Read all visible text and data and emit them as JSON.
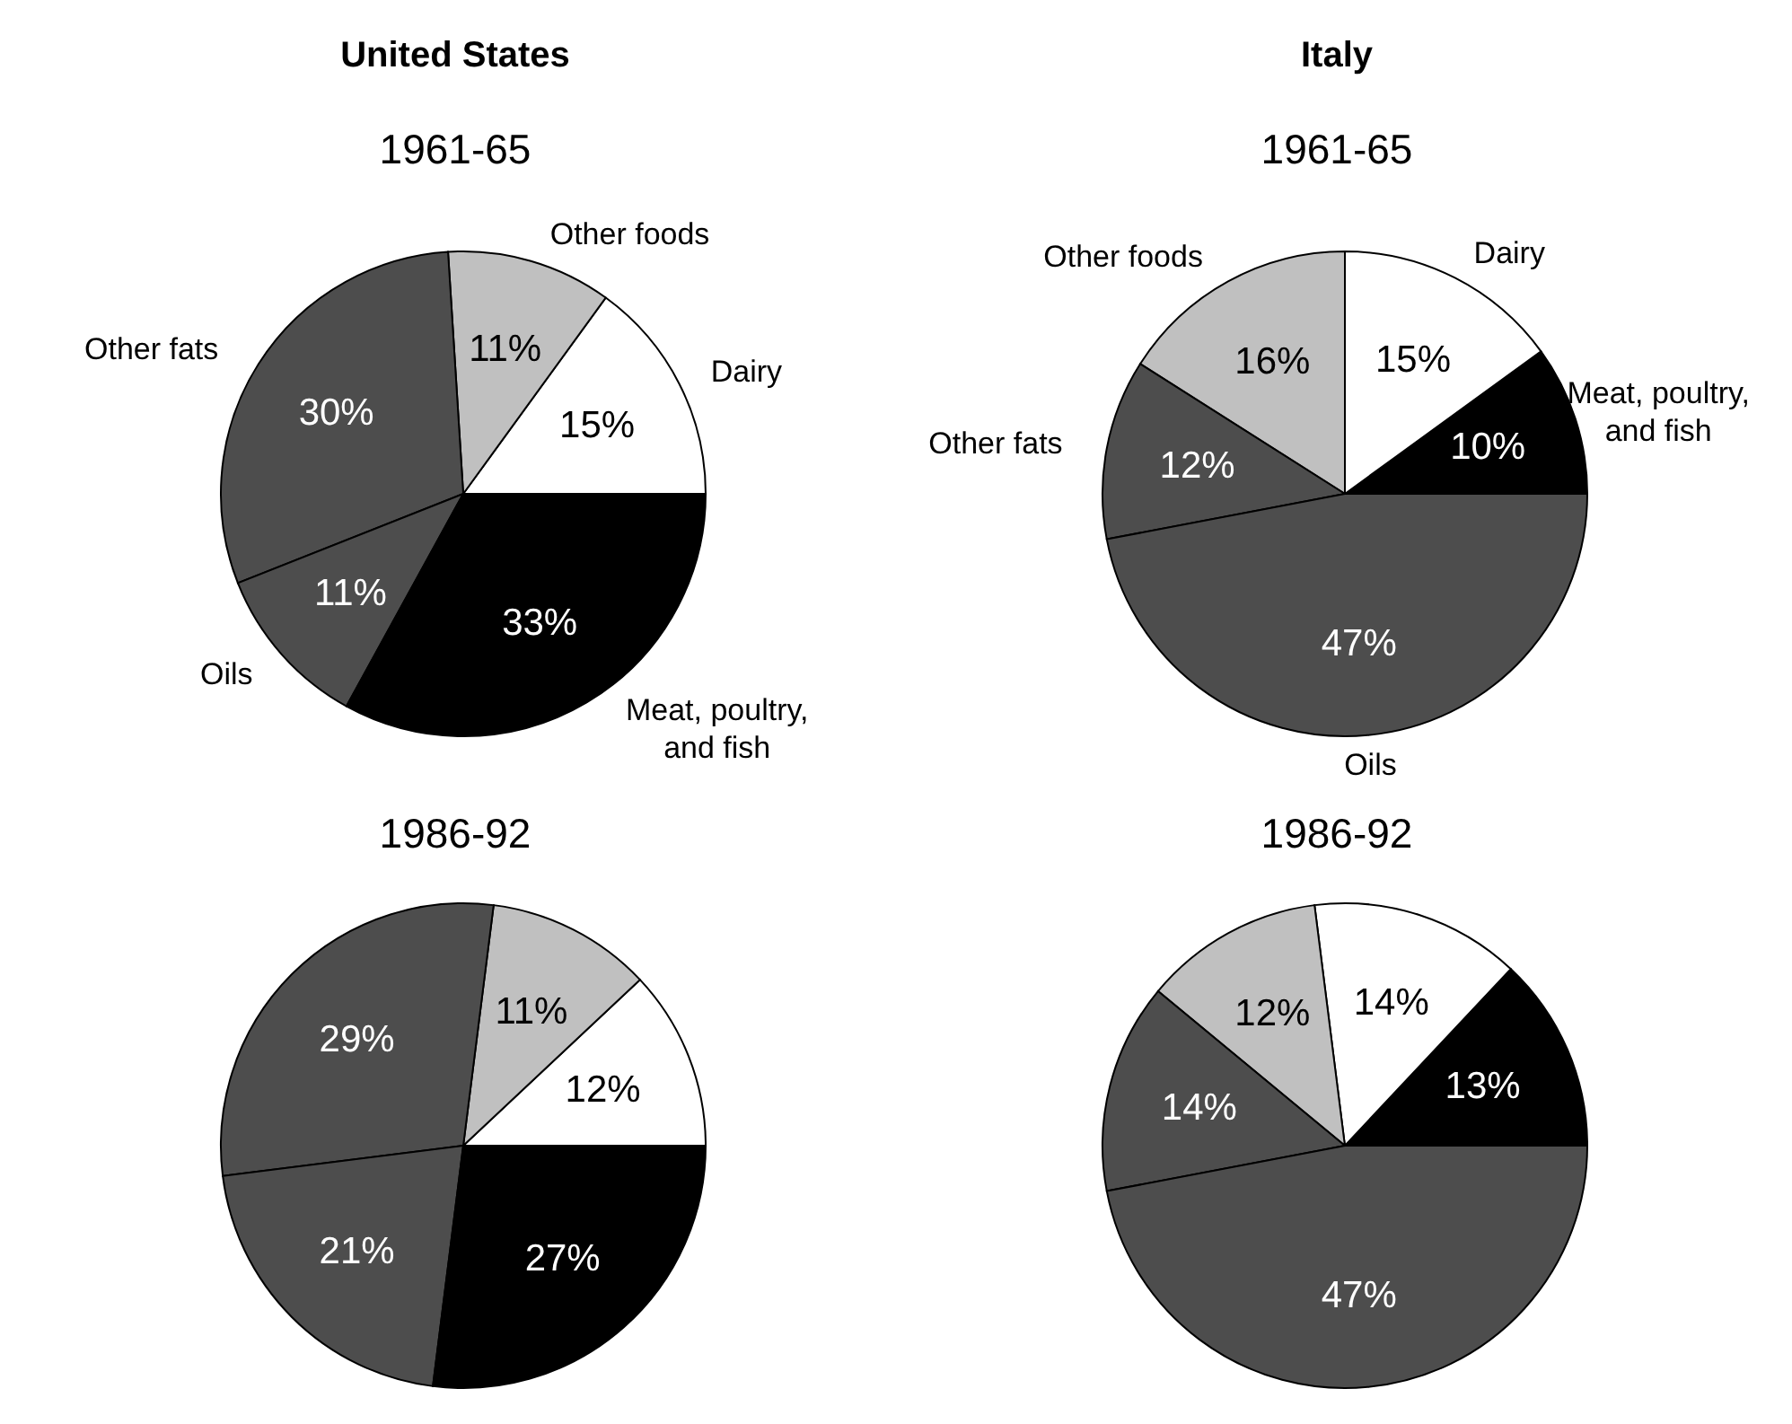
{
  "chart_data": [
    {
      "type": "pie",
      "title": "United States",
      "subtitle": "1961-65",
      "categories": [
        "Dairy",
        "Other foods",
        "Other fats",
        "Oils",
        "Meat, poultry, and fish"
      ],
      "values": [
        15,
        11,
        30,
        11,
        33
      ],
      "value_labels": [
        "15%",
        "11%",
        "30%",
        "11%",
        "33%"
      ],
      "colors": [
        "#ffffff",
        "#c0c0c0",
        "#4d4d4d",
        "#4d4d4d",
        "#000000"
      ]
    },
    {
      "type": "pie",
      "title": "Italy",
      "subtitle": "1961-65",
      "categories": [
        "Meat, poultry, and fish",
        "Dairy",
        "Other foods",
        "Other fats",
        "Oils"
      ],
      "values": [
        10,
        15,
        16,
        12,
        47
      ],
      "value_labels": [
        "10%",
        "15%",
        "16%",
        "12%",
        "47%"
      ],
      "colors": [
        "#000000",
        "#ffffff",
        "#c0c0c0",
        "#4d4d4d",
        "#4d4d4d"
      ]
    },
    {
      "type": "pie",
      "title": "1986-92",
      "categories": [
        null,
        null,
        null,
        null,
        null
      ],
      "values": [
        12,
        11,
        29,
        21,
        27
      ],
      "value_labels": [
        "12%",
        "11%",
        "29%",
        "21%",
        "27%"
      ],
      "colors": [
        "#ffffff",
        "#c0c0c0",
        "#4d4d4d",
        "#4d4d4d",
        "#000000"
      ]
    },
    {
      "type": "pie",
      "title": "1986-92",
      "categories": [
        null,
        null,
        null,
        null,
        null
      ],
      "values": [
        13,
        14,
        12,
        14,
        47
      ],
      "value_labels": [
        "13%",
        "14%",
        "12%",
        "14%",
        "47%"
      ],
      "colors": [
        "#000000",
        "#ffffff",
        "#c0c0c0",
        "#4d4d4d",
        "#4d4d4d"
      ]
    }
  ]
}
